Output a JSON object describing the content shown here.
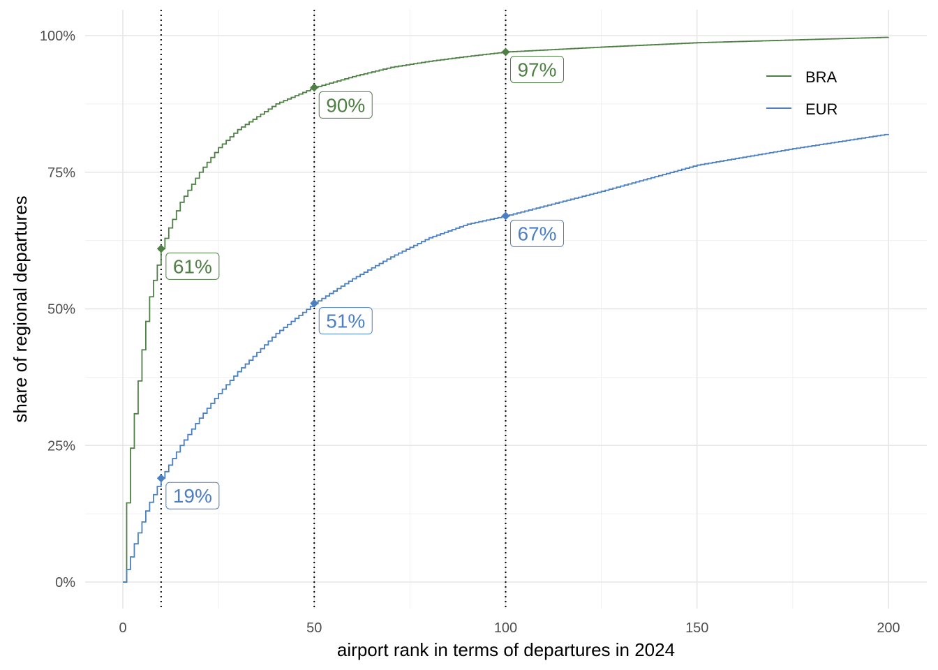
{
  "chart_data": {
    "type": "line",
    "step": true,
    "title": "",
    "xlabel": "airport rank in terms of departures in 2024",
    "ylabel": "share of regional departures",
    "xlim": [
      0,
      200
    ],
    "ylim": [
      0,
      100
    ],
    "x_ticks": [
      0,
      50,
      100,
      150,
      200
    ],
    "x_tick_labels": [
      "0",
      "50",
      "100",
      "150",
      "200"
    ],
    "y_ticks": [
      0,
      25,
      50,
      75,
      100
    ],
    "y_tick_labels": [
      "0%",
      "25%",
      "50%",
      "75%",
      "100%"
    ],
    "grid": true,
    "legend_position": "top-right",
    "reference_lines_x": [
      10,
      50,
      100
    ],
    "series": [
      {
        "name": "BRA",
        "color": "#4E7F45",
        "points": [
          [
            0,
            0
          ],
          [
            1,
            14.5
          ],
          [
            2,
            24.5
          ],
          [
            3,
            30.8
          ],
          [
            4,
            36.8
          ],
          [
            5,
            42.5
          ],
          [
            6,
            47.7
          ],
          [
            7,
            52.2
          ],
          [
            8,
            55.2
          ],
          [
            9,
            58
          ],
          [
            10,
            61
          ],
          [
            12,
            64.8
          ],
          [
            15,
            69.5
          ],
          [
            20,
            75
          ],
          [
            25,
            79.5
          ],
          [
            30,
            82.8
          ],
          [
            40,
            87.5
          ],
          [
            50,
            90.5
          ],
          [
            60,
            92.5
          ],
          [
            70,
            94.2
          ],
          [
            80,
            95.3
          ],
          [
            90,
            96.2
          ],
          [
            100,
            97
          ],
          [
            125,
            97.9
          ],
          [
            150,
            98.7
          ],
          [
            175,
            99.2
          ],
          [
            200,
            99.7
          ]
        ],
        "markers": [
          {
            "x": 10,
            "y": 61,
            "label": "61%"
          },
          {
            "x": 50,
            "y": 90.5,
            "label": "90%"
          },
          {
            "x": 100,
            "y": 97,
            "label": "97%"
          }
        ]
      },
      {
        "name": "EUR",
        "color": "#4A7FC1",
        "points": [
          [
            0,
            0
          ],
          [
            1,
            2.3
          ],
          [
            2,
            4.6
          ],
          [
            3,
            7
          ],
          [
            4,
            9
          ],
          [
            5,
            11
          ],
          [
            6,
            13
          ],
          [
            7,
            14.6
          ],
          [
            8,
            16
          ],
          [
            9,
            17.5
          ],
          [
            10,
            19
          ],
          [
            15,
            25
          ],
          [
            20,
            30
          ],
          [
            25,
            34.5
          ],
          [
            30,
            38.5
          ],
          [
            40,
            45.5
          ],
          [
            50,
            51
          ],
          [
            60,
            55.5
          ],
          [
            70,
            59.5
          ],
          [
            80,
            63
          ],
          [
            90,
            65.5
          ],
          [
            100,
            67
          ],
          [
            125,
            71.5
          ],
          [
            150,
            76.3
          ],
          [
            175,
            79.3
          ],
          [
            200,
            82
          ]
        ],
        "markers": [
          {
            "x": 10,
            "y": 19,
            "label": "19%"
          },
          {
            "x": 50,
            "y": 51,
            "label": "51%"
          },
          {
            "x": 100,
            "y": 67,
            "label": "67%"
          }
        ]
      }
    ]
  }
}
